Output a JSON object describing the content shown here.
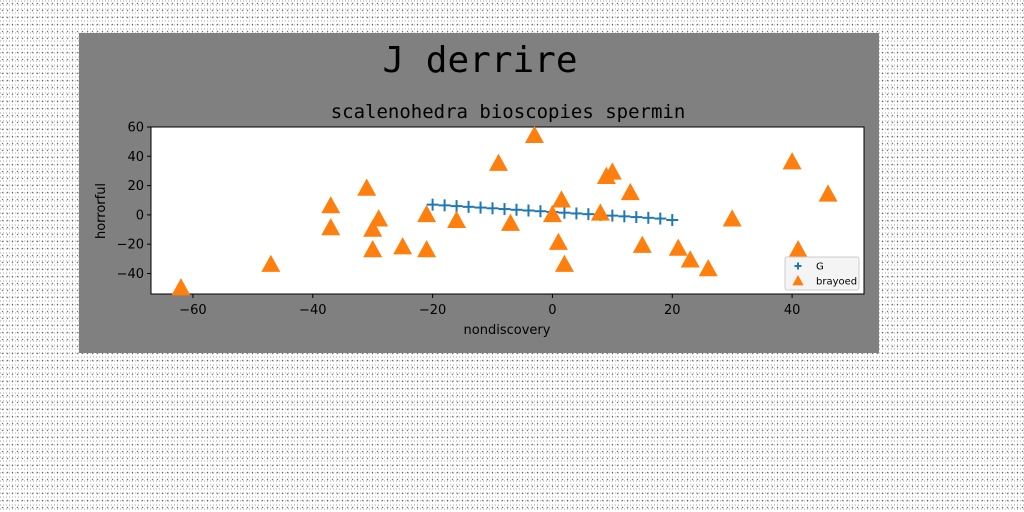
{
  "chart_data": {
    "type": "scatter",
    "suptitle": "J derrire",
    "title": "scalenohedra bioscopies spermin",
    "xlabel": "nondiscovery",
    "ylabel": "horrorful",
    "xlim": [
      -67,
      52
    ],
    "ylim": [
      -54,
      60
    ],
    "xticks": [
      -60,
      -40,
      -20,
      0,
      20,
      40
    ],
    "yticks": [
      -40,
      -20,
      0,
      20,
      40,
      60
    ],
    "grid": false,
    "legend_position": "lower-right",
    "series": [
      {
        "name": "G",
        "marker": "plus",
        "color": "#1f77b4",
        "x": [
          -20,
          -18,
          -16,
          -14,
          -12,
          -10,
          -8,
          -6,
          -4,
          -2,
          0,
          2,
          4,
          6,
          8,
          10,
          12,
          14,
          16,
          18,
          20
        ],
        "y": [
          7,
          6.5,
          6,
          5.5,
          5,
          4.5,
          4,
          3.5,
          3,
          2.5,
          2,
          1.5,
          1,
          0.5,
          0,
          -0.5,
          -1,
          -1.5,
          -2,
          -2.5,
          -3.5
        ]
      },
      {
        "name": "brayoed",
        "marker": "triangle",
        "color": "#ff7f0e",
        "x": [
          -62,
          -47,
          -37,
          -37,
          -31,
          -30,
          -30,
          -29,
          -25,
          -21,
          -21,
          -16,
          -9,
          -7,
          -3,
          0,
          1,
          1.5,
          2,
          8,
          9,
          10,
          13,
          15,
          21,
          23,
          26,
          30,
          40,
          41,
          46
        ],
        "y": [
          -50,
          -34,
          6,
          -9,
          18,
          -10,
          -24,
          -3,
          -22,
          0,
          -24,
          -4,
          35,
          -6,
          54,
          0,
          -19,
          10,
          -34,
          1,
          26,
          29,
          15,
          -21,
          -23,
          -31,
          -37,
          -3,
          36,
          -24,
          14
        ]
      }
    ]
  },
  "colors": {
    "figure_background": "#808080",
    "axes_background": "#ffffff"
  }
}
